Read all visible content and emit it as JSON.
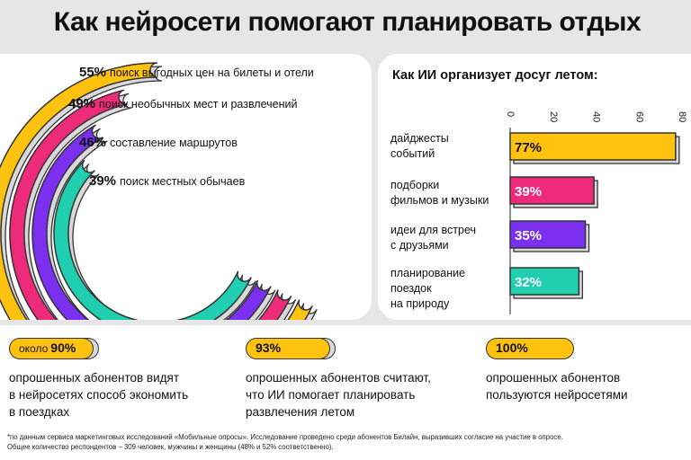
{
  "title": "Как нейросети помогают планировать отдых",
  "colors": {
    "yellow": "#ffc20e",
    "pink": "#ee2a7b",
    "purple": "#7b2ff0",
    "teal": "#1fcfb0",
    "outline": "#333333"
  },
  "arcs": [
    {
      "value": "55%",
      "label": "поиск выгодных цен на билеты и отели",
      "color": "#ffc20e"
    },
    {
      "value": "49%",
      "label": "поиск необычных мест и развлечений",
      "color": "#ee2a7b"
    },
    {
      "value": "46%",
      "label": "составление маршрутов",
      "color": "#7b2ff0"
    },
    {
      "value": "39%",
      "label": "поиск местных обычаев",
      "color": "#1fcfb0"
    }
  ],
  "bar_chart_title": "Как ИИ организует досуг летом:",
  "chart_data": {
    "type": "bar",
    "orientation": "horizontal",
    "title": "Как ИИ организует досуг летом:",
    "categories": [
      "дайджесты событий",
      "подборки фильмов и музыки",
      "идеи для встреч с друзьями",
      "планирование поездок на природу"
    ],
    "category_lines": [
      [
        "дайджесты",
        "событий"
      ],
      [
        "подборки",
        "фильмов и музыки"
      ],
      [
        "идеи для встреч",
        "с друзьями"
      ],
      [
        "планирование",
        "поездок",
        "на природу"
      ]
    ],
    "values": [
      77,
      39,
      35,
      32
    ],
    "value_labels": [
      "77%",
      "39%",
      "35%",
      "32%"
    ],
    "colors": [
      "#ffc20e",
      "#ee2a7b",
      "#7b2ff0",
      "#1fcfb0"
    ],
    "xlim": [
      0,
      80
    ],
    "ticks": [
      0,
      20,
      40,
      60,
      80
    ]
  },
  "stats": [
    {
      "prefix": "около",
      "value": "90%",
      "desc": "опрошенных абонентов видят\nв нейросетях способ экономить\nв поездках"
    },
    {
      "prefix": "",
      "value": "93%",
      "desc": "опрошенных абонентов считают,\nчто ИИ помогает планировать\nразвлечения летом"
    },
    {
      "prefix": "",
      "value": "100%",
      "desc": "опрошенных абонентов\nпользуются нейросетями"
    }
  ],
  "footnote": [
    "*по данным сервиса маркетинговых исследований «Мобильные опросы». Исследование проведено среди абонентов Билайн, выразивших согласие на участие в опросе.",
    "Общее количество респондентов – 309 человек, мужчины и женщины (48% и 52% соответственно)."
  ]
}
